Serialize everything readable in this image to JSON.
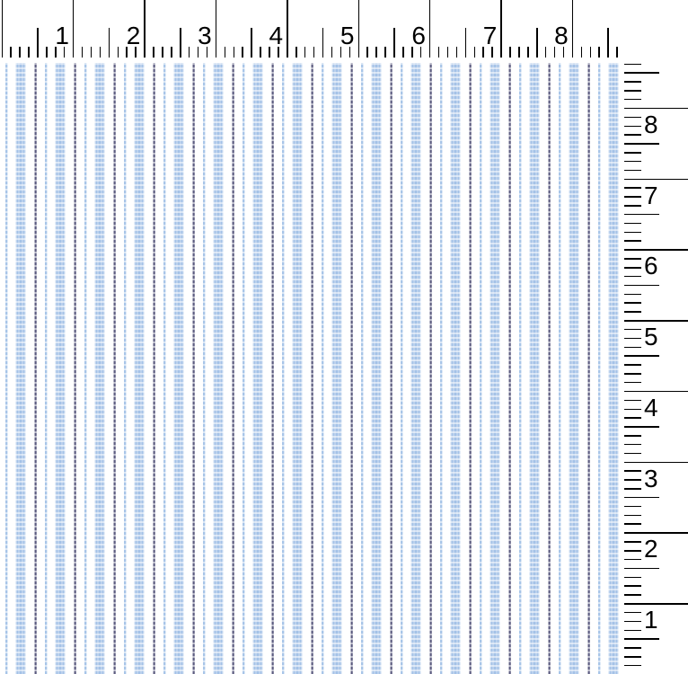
{
  "app": {
    "description": "Blue ticking-stripe fabric swatch displayed with a horizontal inch ruler across the top and a vertical inch ruler on the right side"
  },
  "top_ruler": {
    "unit": "inches",
    "labels": [
      "1",
      "2",
      "3",
      "4",
      "5",
      "6",
      "7",
      "8"
    ]
  },
  "right_ruler": {
    "unit": "inches",
    "labels": [
      "8",
      "7",
      "6",
      "5",
      "4",
      "3",
      "2",
      "1"
    ]
  },
  "fabric": {
    "pattern": "vertical ticking stripes: wide woven blue stripe, thin dark dashed pinstripe, thin light-blue dashed pinstripe on white",
    "colors": {
      "background": "#ffffff",
      "wide_stripe": "#a4c2e7",
      "wide_stripe_edge": "#dbe7f5",
      "thin_dark_stripe": "#5c5c80",
      "thin_light_stripe": "#a8c5e8"
    }
  },
  "rulers_style": {
    "tick_color": "#000000",
    "label_color": "#000000"
  }
}
